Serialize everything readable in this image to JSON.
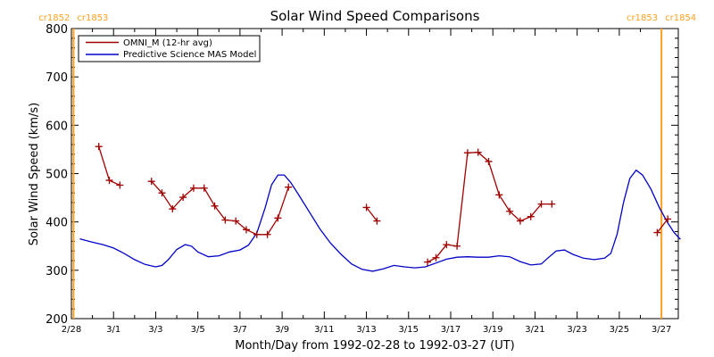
{
  "chart_data": {
    "type": "line",
    "title": "Solar Wind Speed Comparisons",
    "xlabel": "Month/Day from 1992-02-28 to 1992-03-27 (UT)",
    "ylabel": "Solar Wind Speed (km/s)",
    "x_unit": "day-of-March-1992",
    "xlim": [
      -1.0,
      27.8
    ],
    "ylim": [
      200,
      800
    ],
    "grid": false,
    "legend_position": "top-left",
    "x_ticks": [
      {
        "value": -1,
        "label": "2/28"
      },
      {
        "value": 1,
        "label": "3/1"
      },
      {
        "value": 3,
        "label": "3/3"
      },
      {
        "value": 5,
        "label": "3/5"
      },
      {
        "value": 7,
        "label": "3/7"
      },
      {
        "value": 9,
        "label": "3/9"
      },
      {
        "value": 11,
        "label": "3/11"
      },
      {
        "value": 13,
        "label": "3/13"
      },
      {
        "value": 15,
        "label": "3/15"
      },
      {
        "value": 17,
        "label": "3/17"
      },
      {
        "value": 19,
        "label": "3/19"
      },
      {
        "value": 21,
        "label": "3/21"
      },
      {
        "value": 23,
        "label": "3/23"
      },
      {
        "value": 25,
        "label": "3/25"
      },
      {
        "value": 27,
        "label": "3/27"
      }
    ],
    "y_ticks": [
      200,
      300,
      400,
      500,
      600,
      700,
      800
    ],
    "carrington_markers": [
      {
        "x": -0.9,
        "label_left": "cr1852",
        "label_right": "cr1853",
        "color": "#ffa020"
      },
      {
        "x": 27.0,
        "label_left": "cr1853",
        "label_right": "cr1854",
        "color": "#ffa020"
      }
    ],
    "series": [
      {
        "name": "OMNI_M (12-hr avg)",
        "color": "#a00000",
        "marker": "plus",
        "segments": [
          [
            [
              0.3,
              556
            ],
            [
              0.8,
              486
            ],
            [
              1.3,
              476
            ]
          ],
          [
            [
              2.8,
              484
            ],
            [
              3.3,
              460
            ],
            [
              3.8,
              427
            ],
            [
              4.3,
              451
            ],
            [
              4.8,
              470
            ],
            [
              5.3,
              470
            ],
            [
              5.8,
              433
            ],
            [
              6.3,
              404
            ],
            [
              6.8,
              402
            ],
            [
              7.3,
              384
            ],
            [
              7.8,
              374
            ],
            [
              8.3,
              374
            ],
            [
              8.8,
              408
            ],
            [
              9.3,
              472
            ]
          ],
          [
            [
              13.0,
              430
            ],
            [
              13.5,
              402
            ]
          ],
          [
            [
              15.9,
              317
            ],
            [
              16.3,
              326
            ],
            [
              16.8,
              353
            ],
            [
              17.3,
              350
            ],
            [
              17.8,
              543
            ],
            [
              18.3,
              544
            ],
            [
              18.8,
              525
            ],
            [
              19.3,
              456
            ],
            [
              19.8,
              422
            ],
            [
              20.3,
              402
            ],
            [
              20.8,
              411
            ],
            [
              21.3,
              437
            ],
            [
              21.8,
              437
            ]
          ],
          [
            [
              26.8,
              378
            ],
            [
              27.3,
              406
            ]
          ]
        ]
      },
      {
        "name": "Predictive Science MAS Model",
        "color": "#0000c8",
        "marker": "none",
        "points": [
          [
            -0.6,
            365
          ],
          [
            0,
            358
          ],
          [
            0.5,
            353
          ],
          [
            1,
            346
          ],
          [
            1.5,
            335
          ],
          [
            2,
            322
          ],
          [
            2.5,
            312
          ],
          [
            3,
            307
          ],
          [
            3.3,
            310
          ],
          [
            3.6,
            322
          ],
          [
            4,
            343
          ],
          [
            4.4,
            353
          ],
          [
            4.7,
            350
          ],
          [
            5,
            338
          ],
          [
            5.5,
            328
          ],
          [
            6,
            330
          ],
          [
            6.5,
            338
          ],
          [
            7,
            342
          ],
          [
            7.4,
            352
          ],
          [
            7.8,
            377
          ],
          [
            8.2,
            430
          ],
          [
            8.5,
            477
          ],
          [
            8.8,
            497
          ],
          [
            9.1,
            497
          ],
          [
            9.4,
            482
          ],
          [
            9.8,
            455
          ],
          [
            10.3,
            420
          ],
          [
            10.8,
            385
          ],
          [
            11.3,
            356
          ],
          [
            11.8,
            333
          ],
          [
            12.3,
            313
          ],
          [
            12.8,
            302
          ],
          [
            13.3,
            298
          ],
          [
            13.8,
            303
          ],
          [
            14.3,
            310
          ],
          [
            14.8,
            307
          ],
          [
            15.3,
            305
          ],
          [
            15.8,
            307
          ],
          [
            16.3,
            315
          ],
          [
            16.8,
            323
          ],
          [
            17.3,
            327
          ],
          [
            17.8,
            328
          ],
          [
            18.3,
            327
          ],
          [
            18.8,
            327
          ],
          [
            19.3,
            330
          ],
          [
            19.8,
            328
          ],
          [
            20.3,
            318
          ],
          [
            20.8,
            311
          ],
          [
            21.3,
            313
          ],
          [
            21.6,
            325
          ],
          [
            22,
            340
          ],
          [
            22.4,
            342
          ],
          [
            22.8,
            333
          ],
          [
            23.3,
            325
          ],
          [
            23.8,
            322
          ],
          [
            24.3,
            325
          ],
          [
            24.6,
            335
          ],
          [
            24.9,
            375
          ],
          [
            25.2,
            440
          ],
          [
            25.5,
            490
          ],
          [
            25.8,
            507
          ],
          [
            26.1,
            497
          ],
          [
            26.5,
            468
          ],
          [
            26.9,
            430
          ],
          [
            27.3,
            398
          ],
          [
            27.6,
            378
          ],
          [
            27.9,
            364
          ]
        ]
      }
    ]
  }
}
